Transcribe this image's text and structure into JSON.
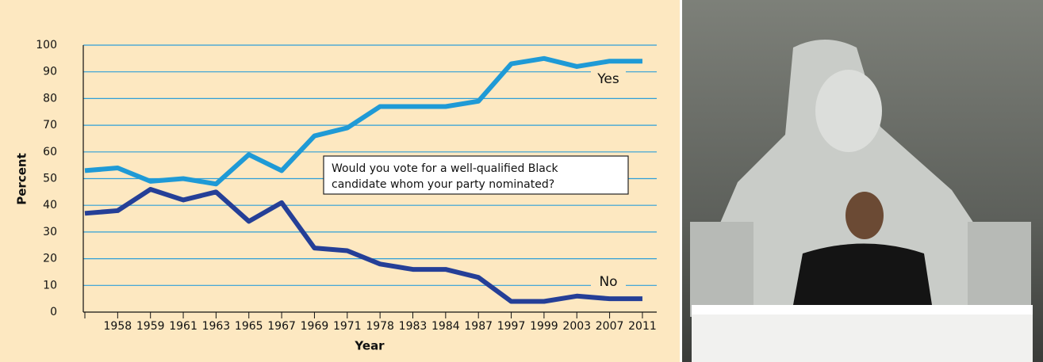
{
  "chart_data": {
    "type": "line",
    "x_label": "Year",
    "y_label": "Percent",
    "annotation": [
      "Would you vote for a well-qualified Black",
      "candidate whom your party nominated?"
    ],
    "categories": [
      null,
      "1958",
      "1959",
      "1961",
      "1963",
      "1965",
      "1967",
      "1969",
      "1971",
      "1978",
      "1983",
      "1984",
      "1987",
      "1997",
      "1999",
      "2003",
      "2007",
      "2011"
    ],
    "series": [
      {
        "name": "Yes",
        "color": "#1f9ad6",
        "values": [
          53,
          54,
          49,
          50,
          48,
          59,
          53,
          66,
          69,
          77,
          77,
          77,
          79,
          93,
          95,
          92,
          94,
          94
        ]
      },
      {
        "name": "No",
        "color": "#253f97",
        "values": [
          37,
          38,
          46,
          42,
          45,
          34,
          41,
          24,
          23,
          18,
          16,
          16,
          13,
          4,
          4,
          6,
          5,
          5
        ]
      }
    ],
    "ylim": [
      0,
      100
    ],
    "yticks": [
      0,
      10,
      20,
      30,
      40,
      50,
      60,
      70,
      80,
      90,
      100
    ],
    "grid": true
  }
}
